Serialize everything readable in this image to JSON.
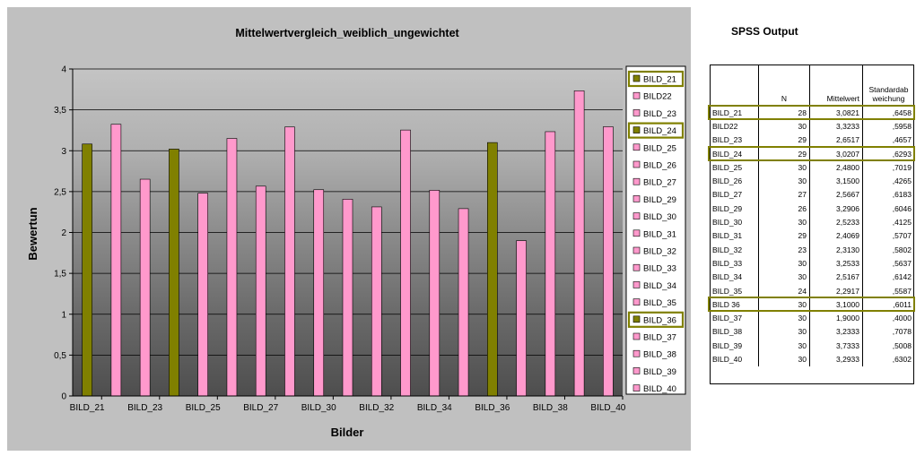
{
  "colors": {
    "highlight_bar": "#808000",
    "normal_bar": "#ff99cc",
    "highlight_border": "#808000",
    "panel_bg": "#c0c0c0"
  },
  "chart_data": {
    "type": "bar",
    "title": "Mittelwertvergleich_weiblich_ungewichtet",
    "xlabel": "Bilder",
    "ylabel": "Bewertun",
    "ylim": [
      0,
      4
    ],
    "yticks": [
      "0",
      "0,5",
      "1",
      "1,5",
      "2",
      "2,5",
      "3",
      "3,5",
      "4"
    ],
    "xtick_labels": [
      "BILD_21",
      "BILD_23",
      "BILD_25",
      "BILD_27",
      "BILD_30",
      "BILD_32",
      "BILD_34",
      "BILD_36",
      "BILD_38",
      "BILD_40"
    ],
    "legend_position": "right",
    "categories": [
      "BILD_21",
      "BILD22",
      "BILD_23",
      "BILD_24",
      "BILD_25",
      "BILD_26",
      "BILD_27",
      "BILD_29",
      "BILD_30",
      "BILD_31",
      "BILD_32",
      "BILD_33",
      "BILD_34",
      "BILD_35",
      "BILD_36",
      "BILD_37",
      "BILD_38",
      "BILD_39",
      "BILD_40"
    ],
    "values": [
      3.0821,
      3.3233,
      2.6517,
      3.0207,
      2.48,
      3.15,
      2.5667,
      3.2906,
      2.5233,
      2.4069,
      2.313,
      3.2533,
      2.5167,
      2.2917,
      3.1,
      1.9,
      3.2333,
      3.7333,
      3.2933
    ],
    "highlighted": [
      true,
      false,
      false,
      true,
      false,
      false,
      false,
      false,
      false,
      false,
      false,
      false,
      false,
      false,
      true,
      false,
      false,
      false,
      false
    ]
  },
  "spss": {
    "title": "SPSS Output",
    "headers": [
      "",
      "N",
      "Mittelwert",
      "Standardab weichung"
    ],
    "rows": [
      [
        "BILD_21",
        "28",
        "3,0821",
        ",6458"
      ],
      [
        "BILD22",
        "30",
        "3,3233",
        ",5958"
      ],
      [
        "BILD_23",
        "29",
        "2,6517",
        ",4657"
      ],
      [
        "BILD_24",
        "29",
        "3,0207",
        ",6293"
      ],
      [
        "BILD_25",
        "30",
        "2,4800",
        ",7019"
      ],
      [
        "BILD_26",
        "30",
        "3,1500",
        ",4265"
      ],
      [
        "BILD_27",
        "27",
        "2,5667",
        ",6183"
      ],
      [
        "BILD_29",
        "26",
        "3,2906",
        ",6046"
      ],
      [
        "BILD_30",
        "30",
        "2,5233",
        ",4125"
      ],
      [
        "BILD_31",
        "29",
        "2,4069",
        ",5707"
      ],
      [
        "BILD_32",
        "23",
        "2,3130",
        ",5802"
      ],
      [
        "BILD_33",
        "30",
        "3,2533",
        ",5637"
      ],
      [
        "BILD_34",
        "30",
        "2,5167",
        ",6142"
      ],
      [
        "BILD_35",
        "24",
        "2,2917",
        ",5587"
      ],
      [
        "BILD 36",
        "30",
        "3,1000",
        ",6011"
      ],
      [
        "BILD_37",
        "30",
        "1,9000",
        ",4000"
      ],
      [
        "BILD_38",
        "30",
        "3,2333",
        ",7078"
      ],
      [
        "BILD_39",
        "30",
        "3,7333",
        ",5008"
      ],
      [
        "BILD_40",
        "30",
        "3,2933",
        ",6302"
      ]
    ],
    "highlighted_rows": [
      0,
      3,
      14
    ]
  }
}
